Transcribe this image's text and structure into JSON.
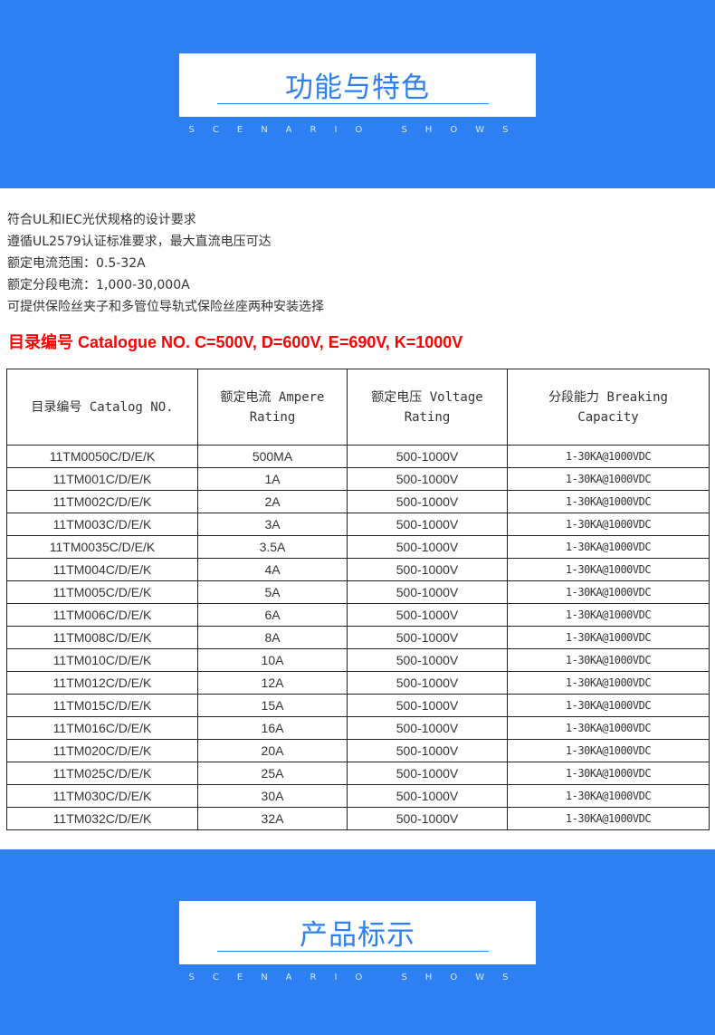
{
  "top_banner": {
    "title": "功能与特色",
    "subtitle": "SCENARIO SHOWS"
  },
  "features": [
    "符合UL和IEC光伏规格的设计要求",
    "遵循UL2579认证标准要求，最大直流电压可达",
    "额定电流范围：0.5-32A",
    "额定分段电流：1,000-30,000A",
    "可提供保险丝夹子和多管位导轨式保险丝座两种安装选择"
  ],
  "catalogue_note": "目录编号 Catalogue NO. C=500V, D=600V, E=690V, K=1000V",
  "table": {
    "headers": [
      "目录编号 Catalog NO.",
      "额定电流 Ampere Rating",
      "额定电压 Voltage Rating",
      "分段能力 Breaking Capacity"
    ],
    "rows": [
      [
        "11TM0050C/D/E/K",
        "500MA",
        "500-1000V",
        "1-30KA@1000VDC"
      ],
      [
        "11TM001C/D/E/K",
        "1A",
        "500-1000V",
        "1-30KA@1000VDC"
      ],
      [
        "11TM002C/D/E/K",
        "2A",
        "500-1000V",
        "1-30KA@1000VDC"
      ],
      [
        "11TM003C/D/E/K",
        "3A",
        "500-1000V",
        "1-30KA@1000VDC"
      ],
      [
        "11TM0035C/D/E/K",
        "3.5A",
        "500-1000V",
        "1-30KA@1000VDC"
      ],
      [
        "11TM004C/D/E/K",
        "4A",
        "500-1000V",
        "1-30KA@1000VDC"
      ],
      [
        "11TM005C/D/E/K",
        "5A",
        "500-1000V",
        "1-30KA@1000VDC"
      ],
      [
        "11TM006C/D/E/K",
        "6A",
        "500-1000V",
        "1-30KA@1000VDC"
      ],
      [
        "11TM008C/D/E/K",
        "8A",
        "500-1000V",
        "1-30KA@1000VDC"
      ],
      [
        "11TM010C/D/E/K",
        "10A",
        "500-1000V",
        "1-30KA@1000VDC"
      ],
      [
        "11TM012C/D/E/K",
        "12A",
        "500-1000V",
        "1-30KA@1000VDC"
      ],
      [
        "11TM015C/D/E/K",
        "15A",
        "500-1000V",
        "1-30KA@1000VDC"
      ],
      [
        "11TM016C/D/E/K",
        "16A",
        "500-1000V",
        "1-30KA@1000VDC"
      ],
      [
        "11TM020C/D/E/K",
        "20A",
        "500-1000V",
        "1-30KA@1000VDC"
      ],
      [
        "11TM025C/D/E/K",
        "25A",
        "500-1000V",
        "1-30KA@1000VDC"
      ],
      [
        "11TM030C/D/E/K",
        "30A",
        "500-1000V",
        "1-30KA@1000VDC"
      ],
      [
        "11TM032C/D/E/K",
        "32A",
        "500-1000V",
        "1-30KA@1000VDC"
      ]
    ]
  },
  "bottom_banner": {
    "title": "产品标示",
    "subtitle": "SCENARIO SHOWS"
  },
  "colors": {
    "brand_blue": "#2e7ff2",
    "note_red": "#ff0000"
  }
}
